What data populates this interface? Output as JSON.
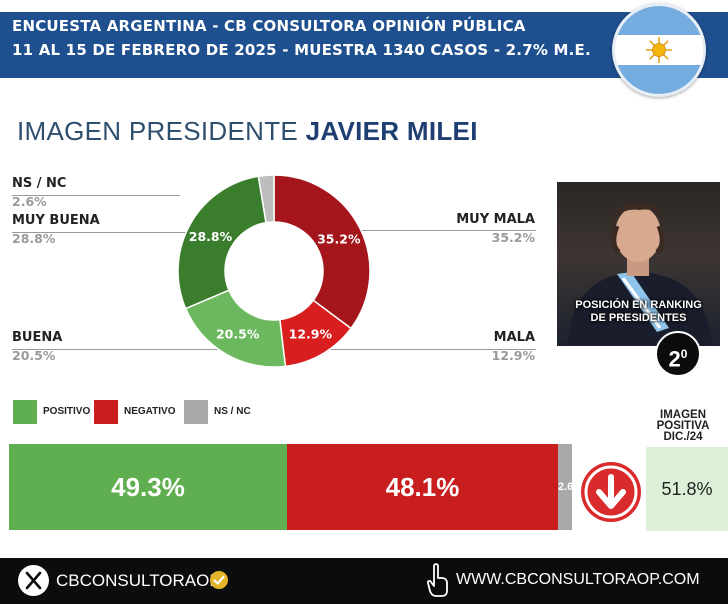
{
  "header": {
    "line1": "ENCUESTA ARGENTINA - CB CONSULTORA OPINIÓN PÚBLICA",
    "line2": "11 AL 15 DE FEBRERO DE 2025 - MUESTRA 1340 CASOS - 2.7% M.E."
  },
  "title": {
    "prefix": "IMAGEN PRESIDENTE",
    "name": "JAVIER MILEI"
  },
  "colors": {
    "header_bg": "#1e4f8f",
    "positivo": "#5fae4f",
    "negativo": "#c81e1e",
    "nsnc": "#a8a8a8",
    "muy_buena": "#3a7d2c",
    "buena": "#6cb85e",
    "muy_mala": "#a5161c",
    "mala": "#d81e1e",
    "ns_nc_slice": "#bdbdbd"
  },
  "chart_data": [
    {
      "type": "pie",
      "title": "IMAGEN PRESIDENTE JAVIER MILEI",
      "hole": true,
      "slices": [
        {
          "label": "MUY MALA",
          "value": 35.2,
          "display": "35.2%",
          "color": "#a5161c"
        },
        {
          "label": "MALA",
          "value": 12.9,
          "display": "12.9%",
          "color": "#d81e1e"
        },
        {
          "label": "BUENA",
          "value": 20.5,
          "display": "20.5%",
          "color": "#6cb85e"
        },
        {
          "label": "MUY BUENA",
          "value": 28.8,
          "display": "28.8%",
          "color": "#3a7d2c"
        },
        {
          "label": "NS / NC",
          "value": 2.6,
          "display": "2.6%",
          "color": "#bdbdbd"
        }
      ]
    },
    {
      "type": "bar",
      "orientation": "horizontal-stacked",
      "legend": [
        {
          "label": "POSITIVO",
          "color": "#5fae4f"
        },
        {
          "label": "NEGATIVO",
          "color": "#c81e1e"
        },
        {
          "label": "NS / NC",
          "color": "#a8a8a8"
        }
      ],
      "segments": [
        {
          "name": "POSITIVO",
          "value": 49.3,
          "display": "49.3%",
          "color": "#5fae4f"
        },
        {
          "name": "NEGATIVO",
          "value": 48.1,
          "display": "48.1%",
          "color": "#c81e1e"
        },
        {
          "name": "NS / NC",
          "value": 2.6,
          "display": "2.6%",
          "color": "#a8a8a8"
        }
      ]
    }
  ],
  "labels_left": [
    {
      "cat": "NS / NC",
      "pct": "2.6%"
    },
    {
      "cat": "MUY BUENA",
      "pct": "28.8%"
    },
    {
      "cat": "BUENA",
      "pct": "20.5%"
    }
  ],
  "labels_right": [
    {
      "cat": "MUY MALA",
      "pct": "35.2%"
    },
    {
      "cat": "MALA",
      "pct": "12.9%"
    }
  ],
  "ranking": {
    "text_line1": "POSICIÓN EN RANKING",
    "text_line2": "DE PRESIDENTES",
    "position": "2",
    "position_suffix": "0"
  },
  "trend_icon": "arrow-down-icon",
  "previous": {
    "label_line1": "IMAGEN",
    "label_line2": "POSITIVA",
    "label_line3": "DIC./24",
    "value": "51.8%"
  },
  "footer": {
    "handle": "CBCONSULTORAOK",
    "website": "WWW.CBCONSULTORAOP.COM",
    "icons": [
      "x-logo-icon",
      "verified-badge-icon",
      "pointer-hand-icon"
    ]
  }
}
